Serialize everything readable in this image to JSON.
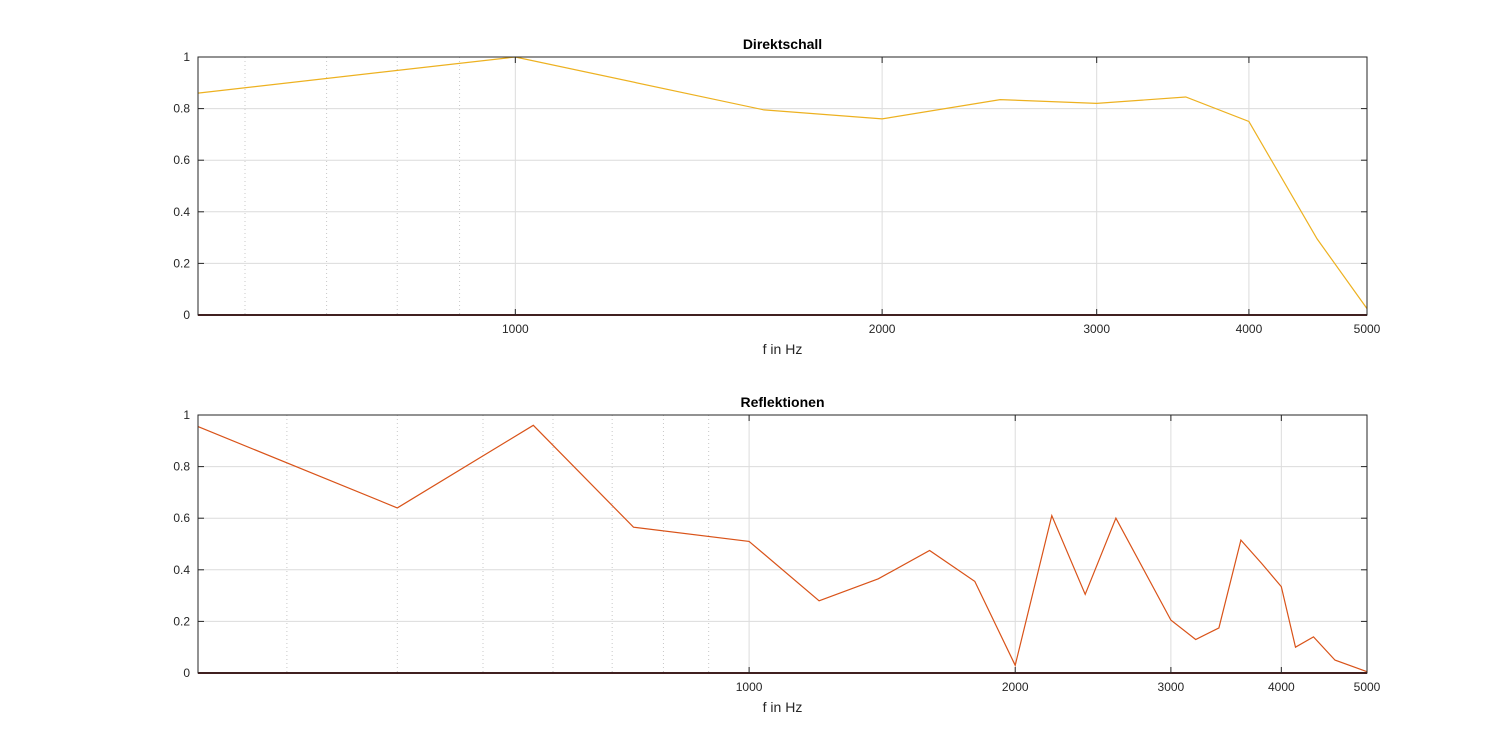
{
  "chart_data": [
    {
      "type": "line",
      "title": "Direktschall",
      "xlabel": "f in Hz",
      "ylabel": "",
      "xscale": "log",
      "xlim": [
        549,
        5000
      ],
      "ylim": [
        0,
        1
      ],
      "xticks": [
        1000,
        2000,
        3000,
        4000,
        5000
      ],
      "yticks": [
        0,
        0.2,
        0.4,
        0.6,
        0.8,
        1
      ],
      "grid": true,
      "minor_grid": true,
      "series": [
        {
          "color": "#EDB120",
          "x": [
            549,
            1000,
            1600,
            2000,
            2500,
            3000,
            3550,
            4000,
            4550,
            5000
          ],
          "y": [
            0.86,
            1.0,
            0.795,
            0.76,
            0.835,
            0.82,
            0.845,
            0.75,
            0.295,
            0.025
          ]
        }
      ]
    },
    {
      "type": "line",
      "title": "Reflektionen",
      "xlabel": "f in Hz",
      "ylabel": "",
      "xscale": "log",
      "xlim": [
        238,
        5000
      ],
      "ylim": [
        0,
        1
      ],
      "xticks": [
        1000,
        2000,
        3000,
        4000,
        5000
      ],
      "yticks": [
        0,
        0.2,
        0.4,
        0.6,
        0.8,
        1
      ],
      "grid": true,
      "minor_grid": true,
      "series": [
        {
          "color": "#D95319",
          "x": [
            238,
            400,
            570,
            740,
            1000,
            1200,
            1400,
            1600,
            1800,
            2000,
            2200,
            2400,
            2600,
            3000,
            3200,
            3400,
            3600,
            3800,
            4000,
            4150,
            4350,
            4600,
            5000
          ],
          "y": [
            0.955,
            0.64,
            0.96,
            0.565,
            0.51,
            0.28,
            0.365,
            0.475,
            0.355,
            0.03,
            0.61,
            0.305,
            0.6,
            0.205,
            0.13,
            0.175,
            0.515,
            0.425,
            0.335,
            0.1,
            0.14,
            0.05,
            0.005
          ]
        }
      ]
    }
  ]
}
